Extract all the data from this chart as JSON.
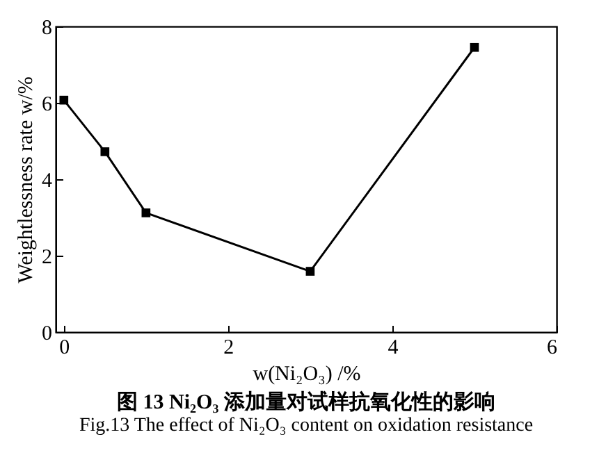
{
  "chart_data": {
    "type": "line",
    "title": "图 13  Ni₂O₃ 添加量对试样抗氧化性的影响",
    "subtitle": "Fig.13  The effect of Ni₂O₃ content on oxidation resistance",
    "xlabel": "w(Ni₂O₃) /%",
    "ylabel": "Weightlessness rate  w/%",
    "x": [
      0,
      0.5,
      1,
      3,
      5
    ],
    "series": [
      {
        "color": "#000000",
        "values": [
          6.07,
          4.72,
          3.12,
          1.59,
          7.45
        ]
      }
    ],
    "xlim": [
      -0.1,
      6
    ],
    "xticks": [
      0,
      2,
      4,
      6
    ],
    "ylim": [
      0,
      8
    ],
    "yticks": [
      0,
      2,
      4,
      6,
      8
    ],
    "marker": "square",
    "line_style": "solid",
    "grid": false
  }
}
